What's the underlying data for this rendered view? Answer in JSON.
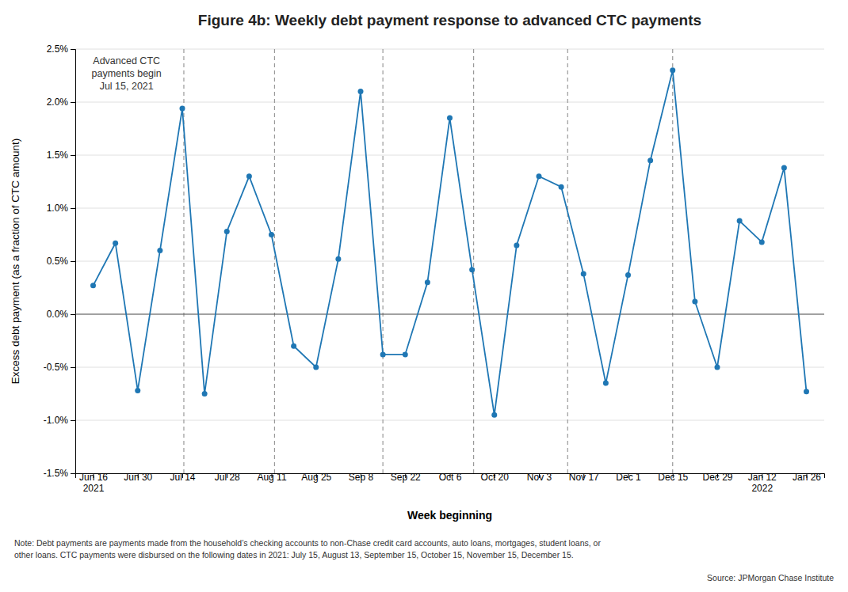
{
  "chart_data": {
    "type": "line",
    "title": "Figure 4b: Weekly debt payment response to advanced CTC payments",
    "xlabel": "Week beginning",
    "ylabel": "Excess debt payment (as a fraction of CTC amount)",
    "categories": [
      "Jun 16\n2021",
      null,
      "Jun 30",
      null,
      "Jul 14",
      null,
      "Jul 28",
      null,
      "Aug 11",
      null,
      "Aug 25",
      null,
      "Sep 8",
      null,
      "Sep 22",
      null,
      "Oct 6",
      null,
      "Oct 20",
      null,
      "Nov 3",
      null,
      "Nov 17",
      null,
      "Dec 1",
      null,
      "Dec 15",
      null,
      "Dec 29",
      null,
      "Jan 12\n2022",
      null,
      "Jan 26"
    ],
    "values": [
      0.0027,
      0.0067,
      -0.0072,
      0.006,
      0.0194,
      -0.0075,
      0.0078,
      0.013,
      0.0075,
      -0.003,
      -0.005,
      0.0052,
      0.021,
      -0.0038,
      -0.0038,
      0.003,
      0.0185,
      0.0042,
      -0.0095,
      0.0065,
      0.013,
      0.012,
      0.0038,
      -0.0065,
      0.0037,
      0.0145,
      0.023,
      0.0012,
      -0.005,
      0.0088,
      0.0068,
      0.0138,
      -0.0073
    ],
    "marker": "circle",
    "vlines": [
      4.07,
      8.14,
      13.0,
      17.07,
      21.29,
      26.0
    ],
    "hlines": [
      0
    ],
    "annotations": [
      {
        "text": "Advanced CTC\npayments begin\nJul 15, 2021",
        "x": 1.5,
        "y": 0.021
      }
    ],
    "ylim": [
      -0.015,
      0.025
    ],
    "yticks": [
      {
        "value": -0.015,
        "label": "-1.5%"
      },
      {
        "value": -0.01,
        "label": "-1.0%"
      },
      {
        "value": -0.005,
        "label": "-0.5%"
      },
      {
        "value": 0.0,
        "label": "0.0%"
      },
      {
        "value": 0.005,
        "label": "0.5%"
      },
      {
        "value": 0.01,
        "label": "1.0%"
      },
      {
        "value": 0.015,
        "label": "1.5%"
      },
      {
        "value": 0.02,
        "label": "2.0%"
      },
      {
        "value": 0.025,
        "label": "2.5%"
      }
    ],
    "grid": true,
    "note": "Note: Debt payments are payments made from the household’s checking accounts to non-Chase credit card accounts, auto loans, mortgages, student loans, or\nother loans. CTC payments were disbursed on the following dates in 2021: July 15, August 13, September 15, October 15, November 15, December 15.",
    "source": "Source: JPMorgan Chase Institute"
  }
}
